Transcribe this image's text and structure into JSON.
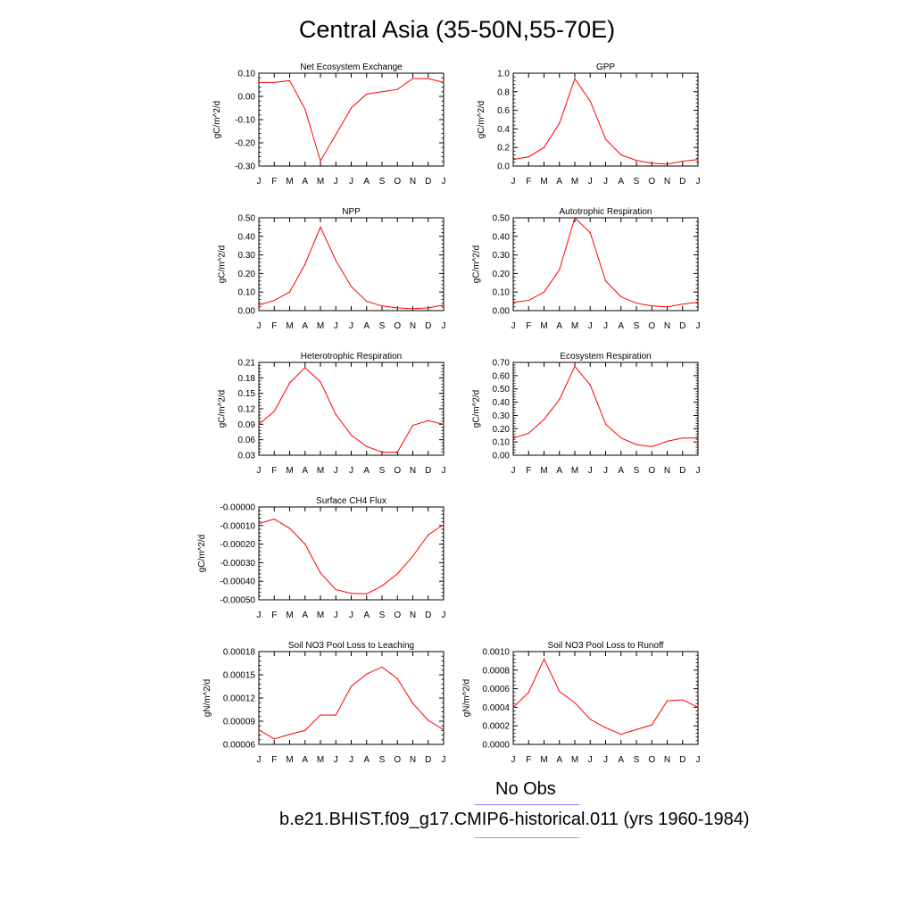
{
  "page_title": "Central Asia (35-50N,55-70E)",
  "legend": [
    {
      "label": "No Obs",
      "color": "#8080ff"
    },
    {
      "label": "b.e21.BHIST.f09_g17.CMIP6-historical.011 (yrs 1960-1984)",
      "color": "#ff8080"
    }
  ],
  "line_color": "#ff0000",
  "chart_data": [
    {
      "type": "line",
      "title": "Net Ecosystem Exchange",
      "ylabel": "gC/m^2/d",
      "categories": [
        "J",
        "F",
        "M",
        "A",
        "M",
        "J",
        "J",
        "A",
        "S",
        "O",
        "N",
        "D",
        "J"
      ],
      "ylim": [
        -0.3,
        0.1
      ],
      "yticks": [
        "0.10",
        "0.00",
        "-0.10",
        "-0.20",
        "-0.30"
      ],
      "ytick_values": [
        0.1,
        0.0,
        -0.1,
        -0.2,
        -0.3
      ],
      "values": [
        0.06,
        0.06,
        0.068,
        -0.055,
        -0.278,
        -0.165,
        -0.05,
        0.01,
        0.02,
        0.03,
        0.077,
        0.077,
        0.06
      ]
    },
    {
      "type": "line",
      "title": "GPP",
      "ylabel": "gC/m^2/d",
      "categories": [
        "J",
        "F",
        "M",
        "A",
        "M",
        "J",
        "J",
        "A",
        "S",
        "O",
        "N",
        "D",
        "J"
      ],
      "ylim": [
        0.0,
        1.0
      ],
      "yticks": [
        "1.0",
        "0.8",
        "0.6",
        "0.4",
        "0.2",
        "0.0"
      ],
      "ytick_values": [
        1.0,
        0.8,
        0.6,
        0.4,
        0.2,
        0.0
      ],
      "values": [
        0.07,
        0.1,
        0.2,
        0.46,
        0.94,
        0.7,
        0.29,
        0.12,
        0.06,
        0.03,
        0.02,
        0.05,
        0.07
      ]
    },
    {
      "type": "line",
      "title": "NPP",
      "ylabel": "gC/m^2/d",
      "categories": [
        "J",
        "F",
        "M",
        "A",
        "M",
        "J",
        "J",
        "A",
        "S",
        "O",
        "N",
        "D",
        "J"
      ],
      "ylim": [
        0.0,
        0.5
      ],
      "yticks": [
        "0.50",
        "0.40",
        "0.30",
        "0.20",
        "0.10",
        "0.00"
      ],
      "ytick_values": [
        0.5,
        0.4,
        0.3,
        0.2,
        0.1,
        0.0
      ],
      "values": [
        0.03,
        0.055,
        0.1,
        0.25,
        0.45,
        0.27,
        0.13,
        0.05,
        0.025,
        0.015,
        0.01,
        0.015,
        0.03
      ]
    },
    {
      "type": "line",
      "title": "Autotrophic Respiration",
      "ylabel": "gC/m^2/d",
      "categories": [
        "J",
        "F",
        "M",
        "A",
        "M",
        "J",
        "J",
        "A",
        "S",
        "O",
        "N",
        "D",
        "J"
      ],
      "ylim": [
        0.0,
        0.5
      ],
      "yticks": [
        "0.50",
        "0.40",
        "0.30",
        "0.20",
        "0.10",
        "0.00"
      ],
      "ytick_values": [
        0.5,
        0.4,
        0.3,
        0.2,
        0.1,
        0.0
      ],
      "values": [
        0.045,
        0.055,
        0.1,
        0.22,
        0.5,
        0.42,
        0.16,
        0.075,
        0.04,
        0.025,
        0.02,
        0.035,
        0.045
      ]
    },
    {
      "type": "line",
      "title": "Heterotrophic Respiration",
      "ylabel": "gC/m^2/d",
      "categories": [
        "J",
        "F",
        "M",
        "A",
        "M",
        "J",
        "J",
        "A",
        "S",
        "O",
        "N",
        "D",
        "J"
      ],
      "ylim": [
        0.03,
        0.21
      ],
      "yticks": [
        "0.21",
        "0.18",
        "0.15",
        "0.12",
        "0.09",
        "0.06",
        "0.03"
      ],
      "ytick_values": [
        0.21,
        0.18,
        0.15,
        0.12,
        0.09,
        0.06,
        0.03
      ],
      "values": [
        0.09,
        0.115,
        0.17,
        0.2,
        0.172,
        0.109,
        0.069,
        0.047,
        0.036,
        0.036,
        0.088,
        0.097,
        0.09
      ]
    },
    {
      "type": "line",
      "title": "Ecosystem Respiration",
      "ylabel": "gC/m^2/d",
      "categories": [
        "J",
        "F",
        "M",
        "A",
        "M",
        "J",
        "J",
        "A",
        "S",
        "O",
        "N",
        "D",
        "J"
      ],
      "ylim": [
        0.0,
        0.7
      ],
      "yticks": [
        "0.70",
        "0.60",
        "0.50",
        "0.40",
        "0.30",
        "0.20",
        "0.10",
        "0.00"
      ],
      "ytick_values": [
        0.7,
        0.6,
        0.5,
        0.4,
        0.3,
        0.2,
        0.1,
        0.0
      ],
      "values": [
        0.13,
        0.165,
        0.27,
        0.42,
        0.67,
        0.53,
        0.235,
        0.13,
        0.08,
        0.065,
        0.105,
        0.13,
        0.13
      ]
    },
    {
      "type": "line",
      "title": "Surface CH4 Flux",
      "ylabel": "gC/m^2/d",
      "categories": [
        "J",
        "F",
        "M",
        "A",
        "M",
        "J",
        "J",
        "A",
        "S",
        "O",
        "N",
        "D",
        "J"
      ],
      "ylim": [
        -0.0005,
        0.0
      ],
      "yticks": [
        "-0.00000",
        "-0.00010",
        "-0.00020",
        "-0.00030",
        "-0.00040",
        "-0.00050"
      ],
      "ytick_values": [
        0.0,
        -0.0001,
        -0.0002,
        -0.0003,
        -0.0004,
        -0.0005
      ],
      "values": [
        -9e-05,
        -6.5e-05,
        -0.000115,
        -0.0002,
        -0.000355,
        -0.000445,
        -0.000465,
        -0.000468,
        -0.000425,
        -0.00036,
        -0.000265,
        -0.00015,
        -9.5e-05
      ]
    },
    {
      "type": "line",
      "title": "Soil NO3 Pool Loss to Leaching",
      "ylabel": "gN/m^2/d",
      "categories": [
        "J",
        "F",
        "M",
        "A",
        "M",
        "J",
        "J",
        "A",
        "S",
        "O",
        "N",
        "D",
        "J"
      ],
      "ylim": [
        6e-05,
        0.00018
      ],
      "yticks": [
        "0.00018",
        "0.00015",
        "0.00012",
        "0.00009",
        "0.00006"
      ],
      "ytick_values": [
        0.00018,
        0.00015,
        0.00012,
        9e-05,
        6e-05
      ],
      "values": [
        7.9e-05,
        6.7e-05,
        7.3e-05,
        7.8e-05,
        9.8e-05,
        9.8e-05,
        0.000135,
        0.000151,
        0.00016,
        0.000145,
        0.000113,
        9.1e-05,
        7.9e-05
      ]
    },
    {
      "type": "line",
      "title": "Soil NO3 Pool Loss to Runoff",
      "ylabel": "gN/m^2/d",
      "categories": [
        "J",
        "F",
        "M",
        "A",
        "M",
        "J",
        "J",
        "A",
        "S",
        "O",
        "N",
        "D",
        "J"
      ],
      "ylim": [
        0.0,
        0.001
      ],
      "yticks": [
        "0.0010",
        "0.0008",
        "0.0006",
        "0.0004",
        "0.0002",
        "0.0000"
      ],
      "ytick_values": [
        0.001,
        0.0008,
        0.0006,
        0.0004,
        0.0002,
        0.0
      ],
      "values": [
        0.0004,
        0.00056,
        0.00092,
        0.00057,
        0.00045,
        0.00027,
        0.00018,
        0.00011,
        0.00016,
        0.00021,
        0.00047,
        0.00048,
        0.0004
      ]
    }
  ]
}
